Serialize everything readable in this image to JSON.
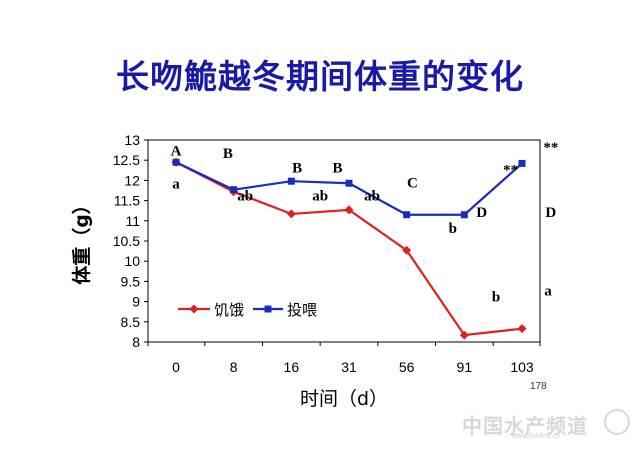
{
  "slide": {
    "title": "长吻鮠越冬期间体重的变化",
    "page_number": "178",
    "watermark": "中国水产频道",
    "watermark_url": "www.fishfirst.cn"
  },
  "colors": {
    "title": "#1a1aa6",
    "starved": "#e02020",
    "fed": "#1a2bbf"
  },
  "chart_data": {
    "type": "line",
    "xlabel": "时间（d）",
    "ylabel": "体重（g）",
    "categories": [
      "0",
      "8",
      "16",
      "31",
      "56",
      "91",
      "103"
    ],
    "ylim": [
      8,
      13
    ],
    "yticks": [
      "8",
      "8.5",
      "9",
      "9.5",
      "10",
      "10.5",
      "11",
      "11.5",
      "12",
      "12.5",
      "13"
    ],
    "legend_position": "bottom-left",
    "series": [
      {
        "name": "饥饿",
        "marker": "diamond",
        "values": [
          12.45,
          11.72,
          11.17,
          11.27,
          10.27,
          8.17,
          8.33
        ]
      },
      {
        "name": "投喂",
        "marker": "square",
        "values": [
          12.45,
          11.77,
          11.98,
          11.93,
          11.15,
          11.15,
          12.42
        ]
      }
    ],
    "annotations": [
      {
        "text": "A",
        "x": 0,
        "y": 12.62
      },
      {
        "text": "B",
        "x": 0.9,
        "y": 12.55
      },
      {
        "text": "B",
        "x": 2.1,
        "y": 12.2
      },
      {
        "text": "B",
        "x": 2.8,
        "y": 12.2
      },
      {
        "text": "C",
        "x": 4.1,
        "y": 11.82
      },
      {
        "text": "D",
        "x": 5.3,
        "y": 11.1
      },
      {
        "text": "D",
        "x": 6.5,
        "y": 11.1
      },
      {
        "text": "**",
        "x": 5.8,
        "y": 12.15
      },
      {
        "text": "**",
        "x": 6.5,
        "y": 12.7
      },
      {
        "text": "a",
        "x": 0,
        "y": 11.8
      },
      {
        "text": "ab",
        "x": 1.2,
        "y": 11.5
      },
      {
        "text": "ab",
        "x": 2.5,
        "y": 11.5
      },
      {
        "text": "ab",
        "x": 3.4,
        "y": 11.5
      },
      {
        "text": "b",
        "x": 4.8,
        "y": 10.7
      },
      {
        "text": "b",
        "x": 5.55,
        "y": 9.0
      },
      {
        "text": "a",
        "x": 6.45,
        "y": 9.15
      }
    ]
  }
}
